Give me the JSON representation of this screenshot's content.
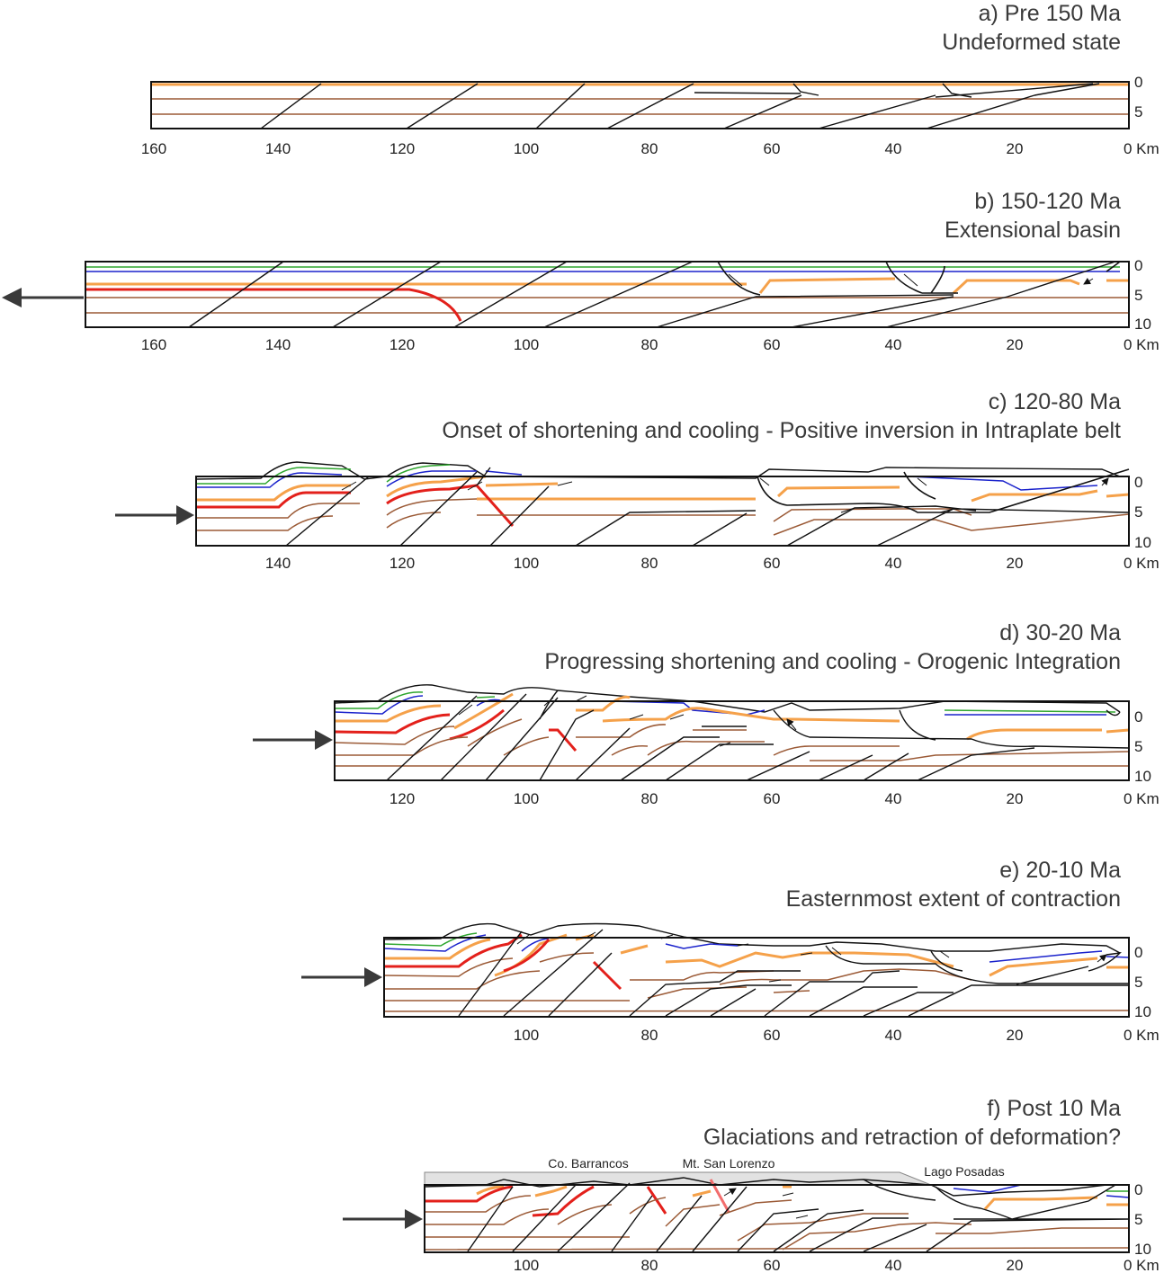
{
  "colors": {
    "outline": "#111111",
    "orange": "#f5a14a",
    "brown": "#9b5a36",
    "blue": "#1a22cc",
    "green": "#2fa62f",
    "red": "#e3201b",
    "salmon": "#f26d6d",
    "arrow": "#3a3a3a",
    "shade": "#e2e2e2"
  },
  "panels": [
    {
      "title": "a) Pre 150 Ma",
      "subtitle": "Undeformed state",
      "x_ticks": [
        "160",
        "140",
        "120",
        "100",
        "80",
        "60",
        "40",
        "20",
        "0 Km"
      ],
      "depth_ticks": [
        "0",
        "5"
      ]
    },
    {
      "title": "b) 150-120 Ma",
      "subtitle": "Extensional basin",
      "x_ticks": [
        "160",
        "140",
        "120",
        "100",
        "80",
        "60",
        "40",
        "20",
        "0 Km"
      ],
      "depth_ticks": [
        "0",
        "5",
        "10"
      ]
    },
    {
      "title": "c) 120-80 Ma",
      "subtitle": "Onset of shortening and cooling - Positive inversion in Intraplate belt",
      "x_ticks": [
        "140",
        "120",
        "100",
        "80",
        "60",
        "40",
        "20",
        "0 Km"
      ],
      "depth_ticks": [
        "0",
        "5",
        "10"
      ]
    },
    {
      "title": "d) 30-20 Ma",
      "subtitle": "Progressing shortening and cooling - Orogenic Integration",
      "x_ticks": [
        "120",
        "100",
        "80",
        "60",
        "40",
        "20",
        "0 Km"
      ],
      "depth_ticks": [
        "0",
        "5",
        "10"
      ]
    },
    {
      "title": "e) 20-10 Ma",
      "subtitle": "Easternmost extent of contraction",
      "x_ticks": [
        "100",
        "80",
        "60",
        "40",
        "20",
        "0 Km"
      ],
      "depth_ticks": [
        "0",
        "5",
        "10"
      ]
    },
    {
      "title": "f) Post 10 Ma",
      "subtitle": "Glaciations and retraction of deformation?",
      "x_ticks": [
        "100",
        "80",
        "60",
        "40",
        "20",
        "0 Km"
      ],
      "depth_ticks": [
        "0",
        "5",
        "10"
      ],
      "places": [
        "Co. Barrancos",
        "Mt. San Lorenzo",
        "Lago Posadas"
      ]
    }
  ]
}
